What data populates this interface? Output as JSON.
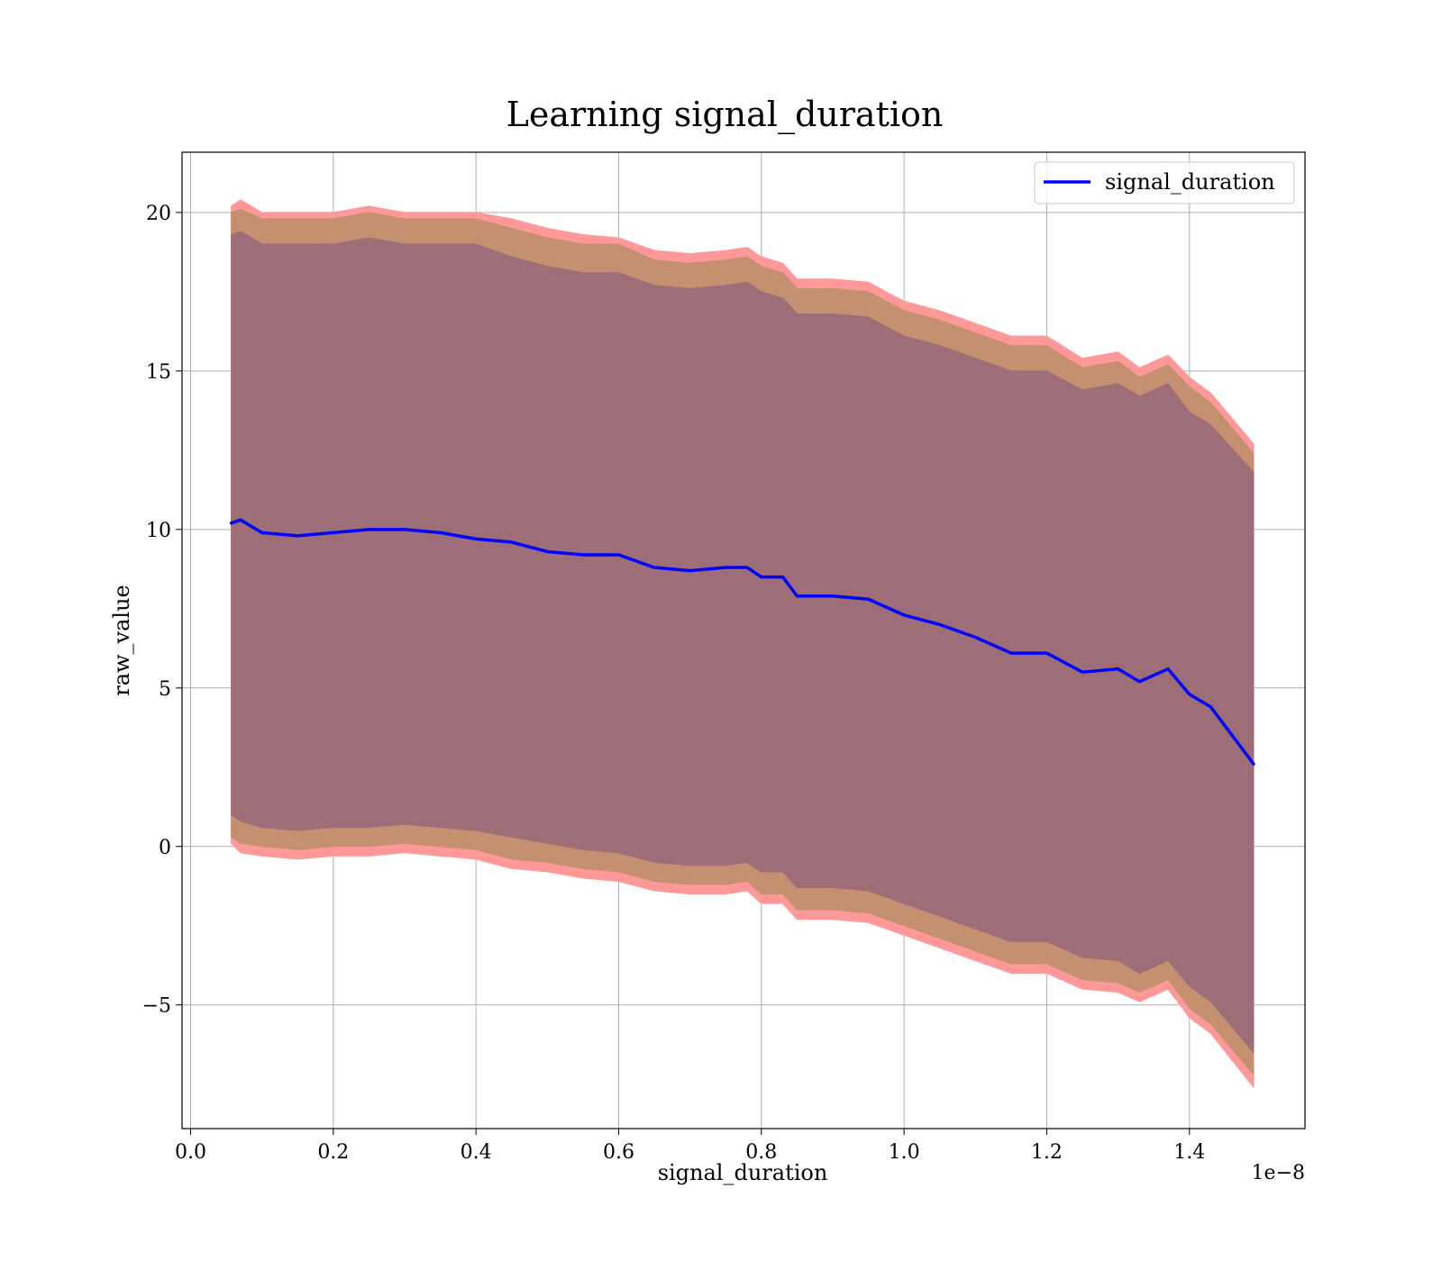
{
  "chart_data": {
    "type": "line",
    "title": "Learning signal_duration",
    "xlabel": "signal_duration",
    "ylabel": "raw_value",
    "x_offset_text": "1e−8",
    "xlim": [
      -0.012,
      1.562
    ],
    "ylim": [
      -8.9,
      21.9
    ],
    "x_ticks": [
      0.0,
      0.2,
      0.4,
      0.6,
      0.8,
      1.0,
      1.2,
      1.4
    ],
    "x_tick_labels": [
      "0.0",
      "0.2",
      "0.4",
      "0.6",
      "0.8",
      "1.0",
      "1.2",
      "1.4"
    ],
    "y_ticks": [
      -5,
      0,
      5,
      10,
      15,
      20
    ],
    "y_tick_labels": [
      "−5",
      "0",
      "5",
      "10",
      "15",
      "20"
    ],
    "grid": true,
    "legend_position": "top-right",
    "colors": {
      "line": "#0000ff",
      "band_outer": "#ff9999",
      "band_middle": "#c49070",
      "band_inner": "#9e6e78"
    },
    "x": [
      0.057,
      0.07,
      0.1,
      0.15,
      0.2,
      0.25,
      0.3,
      0.35,
      0.4,
      0.45,
      0.5,
      0.55,
      0.6,
      0.65,
      0.7,
      0.75,
      0.78,
      0.8,
      0.83,
      0.85,
      0.9,
      0.95,
      1.0,
      1.05,
      1.1,
      1.15,
      1.2,
      1.25,
      1.3,
      1.33,
      1.37,
      1.4,
      1.43,
      1.49
    ],
    "series": [
      {
        "name": "signal_duration",
        "values": [
          10.2,
          10.3,
          9.9,
          9.8,
          9.9,
          10.0,
          10.0,
          9.9,
          9.7,
          9.6,
          9.3,
          9.2,
          9.2,
          8.8,
          8.7,
          8.8,
          8.8,
          8.5,
          8.5,
          7.9,
          7.9,
          7.8,
          7.3,
          7.0,
          6.6,
          6.1,
          6.1,
          5.5,
          5.6,
          5.2,
          5.6,
          4.8,
          4.4,
          2.6
        ]
      }
    ],
    "bands": [
      {
        "upper": [
          20.2,
          20.4,
          20.0,
          20.0,
          20.0,
          20.2,
          20.0,
          20.0,
          20.0,
          19.8,
          19.5,
          19.3,
          19.2,
          18.8,
          18.7,
          18.8,
          18.9,
          18.6,
          18.4,
          17.9,
          17.9,
          17.8,
          17.2,
          16.9,
          16.5,
          16.1,
          16.1,
          15.4,
          15.6,
          15.1,
          15.5,
          14.8,
          14.3,
          12.7
        ],
        "lower": [
          0.1,
          -0.2,
          -0.3,
          -0.4,
          -0.3,
          -0.3,
          -0.2,
          -0.3,
          -0.4,
          -0.7,
          -0.8,
          -1.0,
          -1.1,
          -1.4,
          -1.5,
          -1.5,
          -1.4,
          -1.8,
          -1.8,
          -2.3,
          -2.3,
          -2.4,
          -2.8,
          -3.2,
          -3.6,
          -4.0,
          -4.0,
          -4.5,
          -4.6,
          -4.9,
          -4.5,
          -5.4,
          -5.9,
          -7.6
        ]
      },
      {
        "upper": [
          20.0,
          20.1,
          19.8,
          19.8,
          19.8,
          20.0,
          19.8,
          19.8,
          19.8,
          19.5,
          19.2,
          19.0,
          19.0,
          18.5,
          18.4,
          18.5,
          18.6,
          18.3,
          18.1,
          17.6,
          17.6,
          17.5,
          16.9,
          16.6,
          16.2,
          15.8,
          15.8,
          15.1,
          15.3,
          14.8,
          15.2,
          14.5,
          14.0,
          12.4
        ],
        "lower": [
          0.3,
          0.1,
          0.0,
          -0.1,
          0.0,
          0.0,
          0.1,
          0.0,
          -0.1,
          -0.4,
          -0.5,
          -0.7,
          -0.8,
          -1.1,
          -1.2,
          -1.2,
          -1.1,
          -1.5,
          -1.5,
          -2.0,
          -2.0,
          -2.1,
          -2.5,
          -2.9,
          -3.3,
          -3.7,
          -3.7,
          -4.2,
          -4.3,
          -4.6,
          -4.2,
          -5.1,
          -5.6,
          -7.2
        ]
      },
      {
        "upper": [
          19.3,
          19.4,
          19.0,
          19.0,
          19.0,
          19.2,
          19.0,
          19.0,
          19.0,
          18.6,
          18.3,
          18.1,
          18.1,
          17.7,
          17.6,
          17.7,
          17.8,
          17.5,
          17.3,
          16.8,
          16.8,
          16.7,
          16.1,
          15.8,
          15.4,
          15.0,
          15.0,
          14.4,
          14.6,
          14.2,
          14.6,
          13.7,
          13.3,
          11.8
        ],
        "lower": [
          1.0,
          0.8,
          0.6,
          0.5,
          0.6,
          0.6,
          0.7,
          0.6,
          0.5,
          0.3,
          0.1,
          -0.1,
          -0.2,
          -0.5,
          -0.6,
          -0.6,
          -0.5,
          -0.8,
          -0.8,
          -1.3,
          -1.3,
          -1.4,
          -1.8,
          -2.2,
          -2.6,
          -3.0,
          -3.0,
          -3.5,
          -3.6,
          -4.0,
          -3.6,
          -4.4,
          -4.9,
          -6.5
        ]
      }
    ]
  }
}
